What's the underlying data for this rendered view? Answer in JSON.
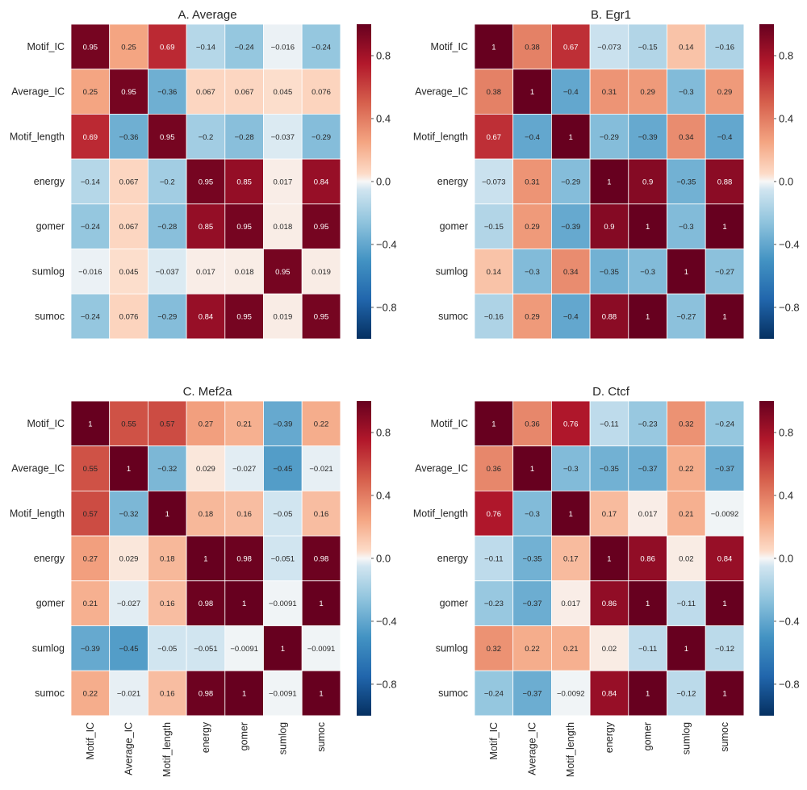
{
  "chart_data": [
    {
      "type": "heatmap",
      "title": "A.  Average",
      "rows": [
        "Motif_IC",
        "Average_IC",
        "Motif_length",
        "energy",
        "gomer",
        "sumlog",
        "sumoc"
      ],
      "columns": [],
      "values": [
        [
          0.95,
          0.25,
          0.69,
          -0.14,
          -0.24,
          -0.016,
          -0.24
        ],
        [
          0.25,
          0.95,
          -0.36,
          0.067,
          0.067,
          0.045,
          0.076
        ],
        [
          0.69,
          -0.36,
          0.95,
          -0.2,
          -0.28,
          -0.037,
          -0.29
        ],
        [
          -0.14,
          0.067,
          -0.2,
          0.95,
          0.85,
          0.017,
          0.84
        ],
        [
          -0.24,
          0.067,
          -0.28,
          0.85,
          0.95,
          0.018,
          0.95
        ],
        [
          -0.016,
          0.045,
          -0.037,
          0.017,
          0.018,
          0.95,
          0.019
        ],
        [
          -0.24,
          0.076,
          -0.29,
          0.84,
          0.95,
          0.019,
          0.95
        ]
      ],
      "colorbar": {
        "min": -1,
        "max": 1,
        "ticks": [
          "0.8",
          "0.4",
          "0.0",
          "−0.4",
          "−0.8"
        ]
      }
    },
    {
      "type": "heatmap",
      "title": "B.  Egr1",
      "rows": [
        "Motif_IC",
        "Average_IC",
        "Motif_length",
        "energy",
        "gomer",
        "sumlog",
        "sumoc"
      ],
      "columns": [],
      "values": [
        [
          1,
          0.38,
          0.67,
          -0.073,
          -0.15,
          0.14,
          -0.16
        ],
        [
          0.38,
          1,
          -0.4,
          0.31,
          0.29,
          -0.3,
          0.29
        ],
        [
          0.67,
          -0.4,
          1,
          -0.29,
          -0.39,
          0.34,
          -0.4
        ],
        [
          -0.073,
          0.31,
          -0.29,
          1,
          0.9,
          -0.35,
          0.88
        ],
        [
          -0.15,
          0.29,
          -0.39,
          0.9,
          1,
          -0.3,
          1
        ],
        [
          0.14,
          -0.3,
          0.34,
          -0.35,
          -0.3,
          1,
          -0.27
        ],
        [
          -0.16,
          0.29,
          -0.4,
          0.88,
          1,
          -0.27,
          1
        ]
      ],
      "colorbar": {
        "min": -1,
        "max": 1,
        "ticks": [
          "0.8",
          "0.4",
          "0.0",
          "−0.4",
          "−0.8"
        ]
      }
    },
    {
      "type": "heatmap",
      "title": "C.  Mef2a",
      "rows": [
        "Motif_IC",
        "Average_IC",
        "Motif_length",
        "energy",
        "gomer",
        "sumlog",
        "sumoc"
      ],
      "columns": [
        "Motif_IC",
        "Average_IC",
        "Motif_length",
        "energy",
        "gomer",
        "sumlog",
        "sumoc"
      ],
      "values": [
        [
          1,
          0.55,
          0.57,
          0.27,
          0.21,
          -0.39,
          0.22
        ],
        [
          0.55,
          1,
          -0.32,
          0.029,
          -0.027,
          -0.45,
          -0.021
        ],
        [
          0.57,
          -0.32,
          1,
          0.18,
          0.16,
          -0.05,
          0.16
        ],
        [
          0.27,
          0.029,
          0.18,
          1,
          0.98,
          -0.051,
          0.98
        ],
        [
          0.21,
          -0.027,
          0.16,
          0.98,
          1,
          -0.0091,
          1
        ],
        [
          -0.39,
          -0.45,
          -0.05,
          -0.051,
          -0.0091,
          1,
          -0.0091
        ],
        [
          0.22,
          -0.021,
          0.16,
          0.98,
          1,
          -0.0091,
          1
        ]
      ],
      "colorbar": {
        "min": -1,
        "max": 1,
        "ticks": [
          "0.8",
          "0.4",
          "0.0",
          "−0.4",
          "−0.8"
        ]
      }
    },
    {
      "type": "heatmap",
      "title": "D.  Ctcf",
      "rows": [
        "Motif_IC",
        "Average_IC",
        "Motif_length",
        "energy",
        "gomer",
        "sumlog",
        "sumoc"
      ],
      "columns": [
        "Motif_IC",
        "Average_IC",
        "Motif_length",
        "energy",
        "gomer",
        "sumlog",
        "sumoc"
      ],
      "values": [
        [
          1,
          0.36,
          0.76,
          -0.11,
          -0.23,
          0.32,
          -0.24
        ],
        [
          0.36,
          1,
          -0.3,
          -0.35,
          -0.37,
          0.22,
          -0.37
        ],
        [
          0.76,
          -0.3,
          1,
          0.17,
          0.017,
          0.21,
          -0.0092
        ],
        [
          -0.11,
          -0.35,
          0.17,
          1,
          0.86,
          0.02,
          0.84
        ],
        [
          -0.23,
          -0.37,
          0.017,
          0.86,
          1,
          -0.11,
          1
        ],
        [
          0.32,
          0.22,
          0.21,
          0.02,
          -0.11,
          1,
          -0.12
        ],
        [
          -0.24,
          -0.37,
          -0.0092,
          0.84,
          1,
          -0.12,
          1
        ]
      ],
      "colorbar": {
        "min": -1,
        "max": 1,
        "ticks": [
          "0.8",
          "0.4",
          "0.0",
          "−0.4",
          "−0.8"
        ]
      }
    }
  ]
}
